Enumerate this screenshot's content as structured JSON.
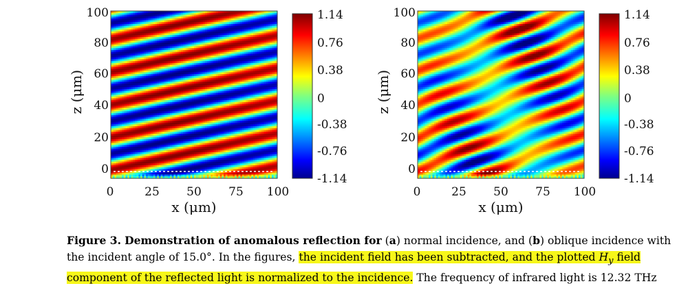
{
  "panels": [
    {
      "id": "a",
      "x_ticks": [
        "0",
        "25",
        "50",
        "75",
        "100"
      ],
      "y_ticks": [
        "0",
        "20",
        "40",
        "60",
        "80",
        "100"
      ],
      "x_label": "x (μm)",
      "y_label": "z (μm)",
      "colorbar_ticks": [
        "1.14",
        "0.76",
        "0.38",
        "0",
        "-0.38",
        "-0.76",
        "-1.14"
      ]
    },
    {
      "id": "b",
      "x_ticks": [
        "0",
        "25",
        "50",
        "75",
        "100"
      ],
      "y_ticks": [
        "0",
        "20",
        "40",
        "60",
        "80",
        "100"
      ],
      "x_label": "x (μm)",
      "y_label": "z (μm)",
      "colorbar_ticks": [
        "1.14",
        "0.76",
        "0.38",
        "0",
        "-0.38",
        "-0.76",
        "-1.14"
      ]
    }
  ],
  "chart_data": [
    {
      "type": "heatmap",
      "title": "",
      "xlabel": "x (μm)",
      "ylabel": "z (μm)",
      "xlim": [
        0,
        100
      ],
      "ylim": [
        0,
        100
      ],
      "clim": [
        -1.14,
        1.14
      ],
      "colormap": "jet",
      "quantity": "normalized reflected Hy field",
      "fringe_period_z_um": 19.5,
      "fringe_rise_over_x_range_um": 22
    },
    {
      "type": "heatmap",
      "title": "",
      "xlabel": "x (μm)",
      "ylabel": "z (μm)",
      "xlim": [
        0,
        100
      ],
      "ylim": [
        0,
        100
      ],
      "clim": [
        -1.14,
        1.14
      ],
      "colormap": "jet",
      "quantity": "normalized reflected Hy field",
      "fringe_period_z_um": 19.5,
      "fringe_rise_over_x_range_um": 42,
      "modulation": "interference with secondary fringes"
    }
  ],
  "caption": {
    "label": "Figure 3.",
    "bold_text": "Demonstration of anomalous reflection for",
    "part_a_label": "a",
    "part_a_text": "normal incidence, and",
    "part_b_label": "b",
    "part_b_text": "oblique incidence with",
    "line2_text": "the incident angle of 15.0°. In the figures,",
    "line2_highlight": "the incident field has been subtracted, and the plotted",
    "field_symbol": "H",
    "field_subscript": "y",
    "field_word": "field",
    "line3_highlight": "component of the reflected light is normalized to the incidence.",
    "line3_text": "The frequency of infrared light is 12.32 THz"
  },
  "colors": {
    "highlight": "#f7f71a"
  }
}
